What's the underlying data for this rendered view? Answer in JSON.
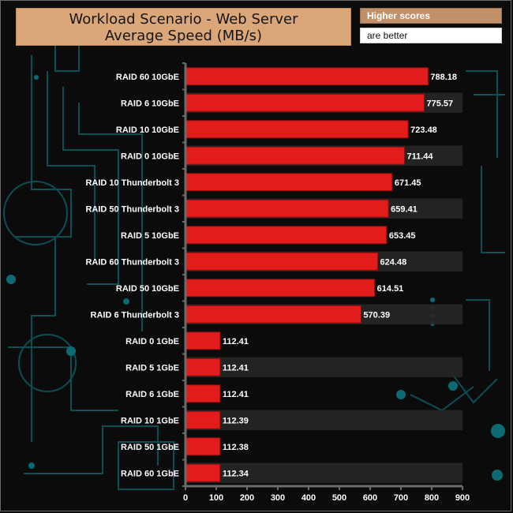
{
  "header": {
    "title_line1": "Workload Scenario - Web Server",
    "title_line2": "Average Speed (MB/s)",
    "legend_line1": "Higher scores",
    "legend_line2": "are better"
  },
  "chart_data": {
    "type": "bar",
    "orientation": "horizontal",
    "title": "Workload Scenario - Web Server Average Speed (MB/s)",
    "xlabel": "",
    "ylabel": "",
    "xlim": [
      0,
      900
    ],
    "xticks": [
      0,
      100,
      200,
      300,
      400,
      500,
      600,
      700,
      800,
      900
    ],
    "bar_color": "#e21b1b",
    "categories": [
      "RAID 60 10GbE",
      "RAID 6 10GbE",
      "RAID 10 10GbE",
      "RAID 0 10GbE",
      "RAID 10 Thunderbolt 3",
      "RAID 50 Thunderbolt 3",
      "RAID 5 10GbE",
      "RAID 60 Thunderbolt 3",
      "RAID 50 10GbE",
      "RAID 6 Thunderbolt 3",
      "RAID 0 1GbE",
      "RAID 5 1GbE",
      "RAID 6 1GbE",
      "RAID 10 1GbE",
      "RAID 50 1GbE",
      "RAID 60 1GbE"
    ],
    "values": [
      788.18,
      775.57,
      723.48,
      711.44,
      671.45,
      659.41,
      653.45,
      624.48,
      614.51,
      570.39,
      112.41,
      112.41,
      112.41,
      112.39,
      112.38,
      112.34
    ],
    "value_labels": [
      "788.18",
      "775.57",
      "723.48",
      "711.44",
      "671.45",
      "659.41",
      "653.45",
      "624.48",
      "614.51",
      "570.39",
      "112.41",
      "112.41",
      "112.41",
      "112.39",
      "112.38",
      "112.34"
    ]
  },
  "colors": {
    "background": "#0b0b0b",
    "circuit": "#0c5f66",
    "title_fill": "#dba678",
    "legend_fill": "#c0906a",
    "bar": "#e21b1b"
  }
}
